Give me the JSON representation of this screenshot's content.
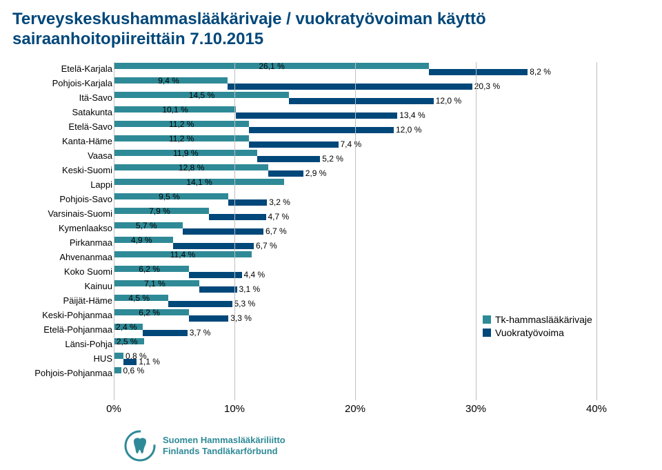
{
  "title_line1": "Terveyskeskushammaslääkärivaje / vuokratyövoiman käyttö",
  "title_line2": "sairaanhoitopiireittäin 7.10.2015",
  "chart": {
    "type": "stacked-horizontal-bar",
    "x_axis": {
      "min": 0,
      "max": 40,
      "ticks": [
        0,
        10,
        20,
        30,
        40
      ],
      "tick_labels": [
        "0%",
        "10%",
        "20%",
        "30%",
        "40%"
      ]
    },
    "colors": {
      "primary": "#2f8a97",
      "secondary": "#00477a",
      "grid": "#bfbfbf",
      "background": "#ffffff",
      "title": "#00477a"
    },
    "font": {
      "label_size": 13,
      "value_size": 12,
      "axis_size": 15
    },
    "legend": [
      {
        "label": "Tk-hammaslääkärivaje",
        "color": "#2f8a97"
      },
      {
        "label": "Vuokratyövoima",
        "color": "#00477a"
      }
    ],
    "rows": [
      {
        "cat": "Etelä-Karjala",
        "a": 26.1,
        "al": "26,1 %",
        "b": 8.2,
        "bl": "8,2 %"
      },
      {
        "cat": "Pohjois-Karjala",
        "a": 9.4,
        "al": "9,4 %",
        "b": 20.3,
        "bl": "20,3 %"
      },
      {
        "cat": "Itä-Savo",
        "a": 14.5,
        "al": "14,5 %",
        "b": 12.0,
        "bl": "12,0 %"
      },
      {
        "cat": "Satakunta",
        "a": 10.1,
        "al": "10,1 %",
        "b": 13.4,
        "bl": "13,4 %"
      },
      {
        "cat": "Etelä-Savo",
        "a": 11.2,
        "al": "11,2 %",
        "b": 12.0,
        "bl": "12,0 %"
      },
      {
        "cat": "Kanta-Häme",
        "a": 11.2,
        "al": "11,2 %",
        "b": 7.4,
        "bl": "7,4 %"
      },
      {
        "cat": "Vaasa",
        "a": 11.9,
        "al": "11,9 %",
        "b": 5.2,
        "bl": "5,2 %"
      },
      {
        "cat": "Keski-Suomi",
        "a": 12.8,
        "al": "12,8 %",
        "b": 2.9,
        "bl": "2,9 %"
      },
      {
        "cat": "Lappi",
        "a": 14.1,
        "al": "14,1 %",
        "b": 0,
        "bl": ""
      },
      {
        "cat": "Pohjois-Savo",
        "a": 9.5,
        "al": "9,5 %",
        "b": 3.2,
        "bl": "3,2 %"
      },
      {
        "cat": "Varsinais-Suomi",
        "a": 7.9,
        "al": "7,9 %",
        "b": 4.7,
        "bl": "4,7 %"
      },
      {
        "cat": "Kymenlaakso",
        "a": 5.7,
        "al": "5,7 %",
        "b": 6.7,
        "bl": "6,7 %"
      },
      {
        "cat": "Pirkanmaa",
        "a": 4.9,
        "al": "4,9 %",
        "b": 6.7,
        "bl": "6,7 %"
      },
      {
        "cat": "Ahvenanmaa",
        "a": 11.4,
        "al": "11,4 %",
        "b": 0,
        "bl": ""
      },
      {
        "cat": "Koko Suomi",
        "a": 6.2,
        "al": "6,2 %",
        "b": 4.4,
        "bl": "4,4 %"
      },
      {
        "cat": "Kainuu",
        "a": 7.1,
        "al": "7,1 %",
        "b": 3.1,
        "bl": "3,1 %"
      },
      {
        "cat": "Päijät-Häme",
        "a": 4.5,
        "al": "4,5 %",
        "b": 5.3,
        "bl": "5,3 %"
      },
      {
        "cat": "Keski-Pohjanmaa",
        "a": 6.2,
        "al": "6,2 %",
        "b": 3.3,
        "bl": "3,3 %"
      },
      {
        "cat": "Etelä-Pohjanmaa",
        "a": 2.4,
        "al": "2,4 %",
        "b": 3.7,
        "bl": "3,7 %"
      },
      {
        "cat": "Länsi-Pohja",
        "a": 2.5,
        "al": "2,5 %",
        "b": 0,
        "bl": ""
      },
      {
        "cat": "HUS",
        "a": 0.8,
        "al": "0,8 %",
        "b": 1.1,
        "bl": "1,1 %"
      },
      {
        "cat": "Pohjois-Pohjanmaa",
        "a": 0.6,
        "al": "0,6 %",
        "b": 0,
        "bl": ""
      }
    ]
  },
  "footer": {
    "line1": "Suomen Hammaslääkäriliitto",
    "line2": "Finlands Tandläkarförbund"
  }
}
